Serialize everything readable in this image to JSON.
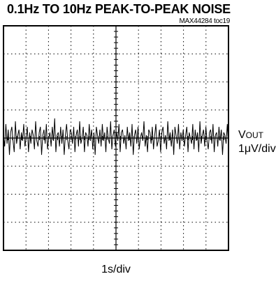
{
  "chart_data": {
    "type": "line",
    "title": "0.1Hz TO 10Hz PEAK-TO-PEAK NOISE",
    "figure_ref": "MAX44284 toc19",
    "y_signal": "V",
    "y_signal_sub": "OUT",
    "y_scale": "1μV/div",
    "x_scale": "1s/div",
    "x_divisions": 10,
    "y_divisions": 8,
    "x_unit": "s",
    "y_unit": "μV",
    "xlim": [
      0,
      10
    ],
    "ylim": [
      -4,
      4
    ],
    "grid": true,
    "series": [
      {
        "values": [
          0.1,
          -0.3,
          0.5,
          -0.2,
          0.3,
          -0.6,
          0.2,
          0.4,
          -0.1,
          -0.5,
          0.6,
          -0.2,
          0.1,
          0.3,
          -0.4,
          0.2,
          -0.1,
          0.5,
          -0.3,
          0.0,
          0.4,
          -0.5,
          0.2,
          -0.2,
          0.3,
          0.1,
          -0.4,
          0.6,
          -0.1,
          -0.3,
          0.2,
          0.4,
          -0.6,
          0.1,
          0.3,
          -0.2,
          0.5,
          -0.4,
          0.0,
          0.2,
          -0.3,
          0.4,
          -0.1,
          0.7,
          -0.5,
          0.1,
          0.2,
          -0.3,
          0.4,
          -0.2,
          0.3,
          -0.6,
          0.1,
          0.5,
          -0.1,
          -0.4,
          0.3,
          0.2,
          -0.2,
          0.4,
          -0.5,
          0.1,
          0.3,
          -0.3,
          0.6,
          -0.2,
          0.0,
          0.4,
          -0.5,
          0.2,
          0.1,
          -0.3,
          0.5,
          -0.1,
          0.3,
          -0.4,
          0.2,
          -0.6,
          0.4,
          0.1,
          -0.2,
          0.3,
          -0.3,
          0.5,
          -0.1,
          0.2,
          -0.5,
          0.4,
          0.0,
          -0.2,
          0.6,
          -0.4,
          0.1,
          0.3,
          -0.3,
          0.2,
          -0.1,
          0.5,
          -0.5,
          0.2,
          0.3,
          -0.2,
          0.1,
          -0.4,
          0.4,
          -0.1,
          0.2,
          -0.3,
          0.5,
          -0.6,
          0.1,
          0.3,
          -0.2,
          0.4,
          -0.4,
          0.0,
          0.2,
          -0.1,
          0.6,
          -0.3,
          0.1,
          -0.5,
          0.3,
          0.2,
          -0.2,
          0.4,
          -0.4,
          0.1,
          0.5,
          -0.3,
          -0.1,
          0.3,
          -0.5,
          0.2,
          0.4,
          -0.2,
          0.1,
          -0.4,
          0.6,
          -0.1,
          0.2,
          -0.3,
          0.3,
          -0.6,
          0.4,
          0.1,
          -0.2,
          0.5,
          -0.4,
          0.2,
          -0.1,
          0.3,
          -0.3,
          0.1,
          0.4,
          -0.5,
          0.2,
          0.0,
          -0.2,
          0.5,
          -0.4,
          0.3,
          -0.1,
          0.2,
          -0.5,
          0.6,
          -0.2,
          0.1,
          0.3,
          -0.3,
          0.4,
          -0.1,
          -0.4,
          0.2,
          0.3,
          -0.2,
          0.5,
          -0.5,
          0.1,
          0.2,
          -0.3,
          0.4,
          -0.1,
          0.3,
          -0.6,
          0.2,
          0.1,
          -0.2,
          0.5,
          -0.3
        ]
      }
    ]
  }
}
